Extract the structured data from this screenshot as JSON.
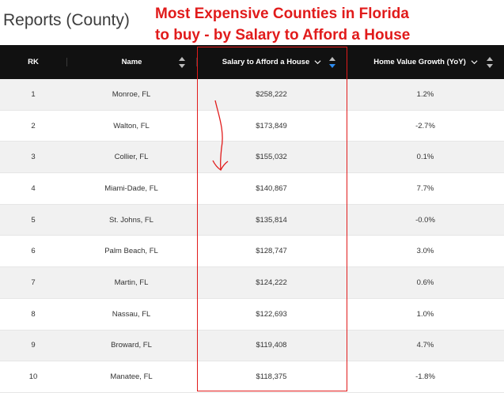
{
  "page": {
    "title": "Reports (County)",
    "annotation_line1": "Most Expensive Counties in Florida",
    "annotation_line2": "to buy - by Salary to Afford a House"
  },
  "table": {
    "headers": {
      "rk": "RK",
      "name": "Name",
      "salary": "Salary to Afford a House",
      "growth": "Home Value Growth (YoY)"
    },
    "rows": [
      {
        "rk": "1",
        "name": "Monroe, FL",
        "salary": "$258,222",
        "growth": "1.2%"
      },
      {
        "rk": "2",
        "name": "Walton, FL",
        "salary": "$173,849",
        "growth": "-2.7%"
      },
      {
        "rk": "3",
        "name": "Collier, FL",
        "salary": "$155,032",
        "growth": "0.1%"
      },
      {
        "rk": "4",
        "name": "Miami-Dade, FL",
        "salary": "$140,867",
        "growth": "7.7%"
      },
      {
        "rk": "5",
        "name": "St. Johns, FL",
        "salary": "$135,814",
        "growth": "-0.0%"
      },
      {
        "rk": "6",
        "name": "Palm Beach, FL",
        "salary": "$128,747",
        "growth": "3.0%"
      },
      {
        "rk": "7",
        "name": "Martin, FL",
        "salary": "$124,222",
        "growth": "0.6%"
      },
      {
        "rk": "8",
        "name": "Nassau, FL",
        "salary": "$122,693",
        "growth": "1.0%"
      },
      {
        "rk": "9",
        "name": "Broward, FL",
        "salary": "$119,408",
        "growth": "4.7%"
      },
      {
        "rk": "10",
        "name": "Manatee, FL",
        "salary": "$118,375",
        "growth": "-1.8%"
      }
    ]
  },
  "colors": {
    "annotation": "#e11b1b",
    "header_bg": "#111111",
    "sort_active": "#2d8cf0"
  },
  "icons": {
    "sort": "sort-icon",
    "chevron": "chevron-down-icon"
  }
}
